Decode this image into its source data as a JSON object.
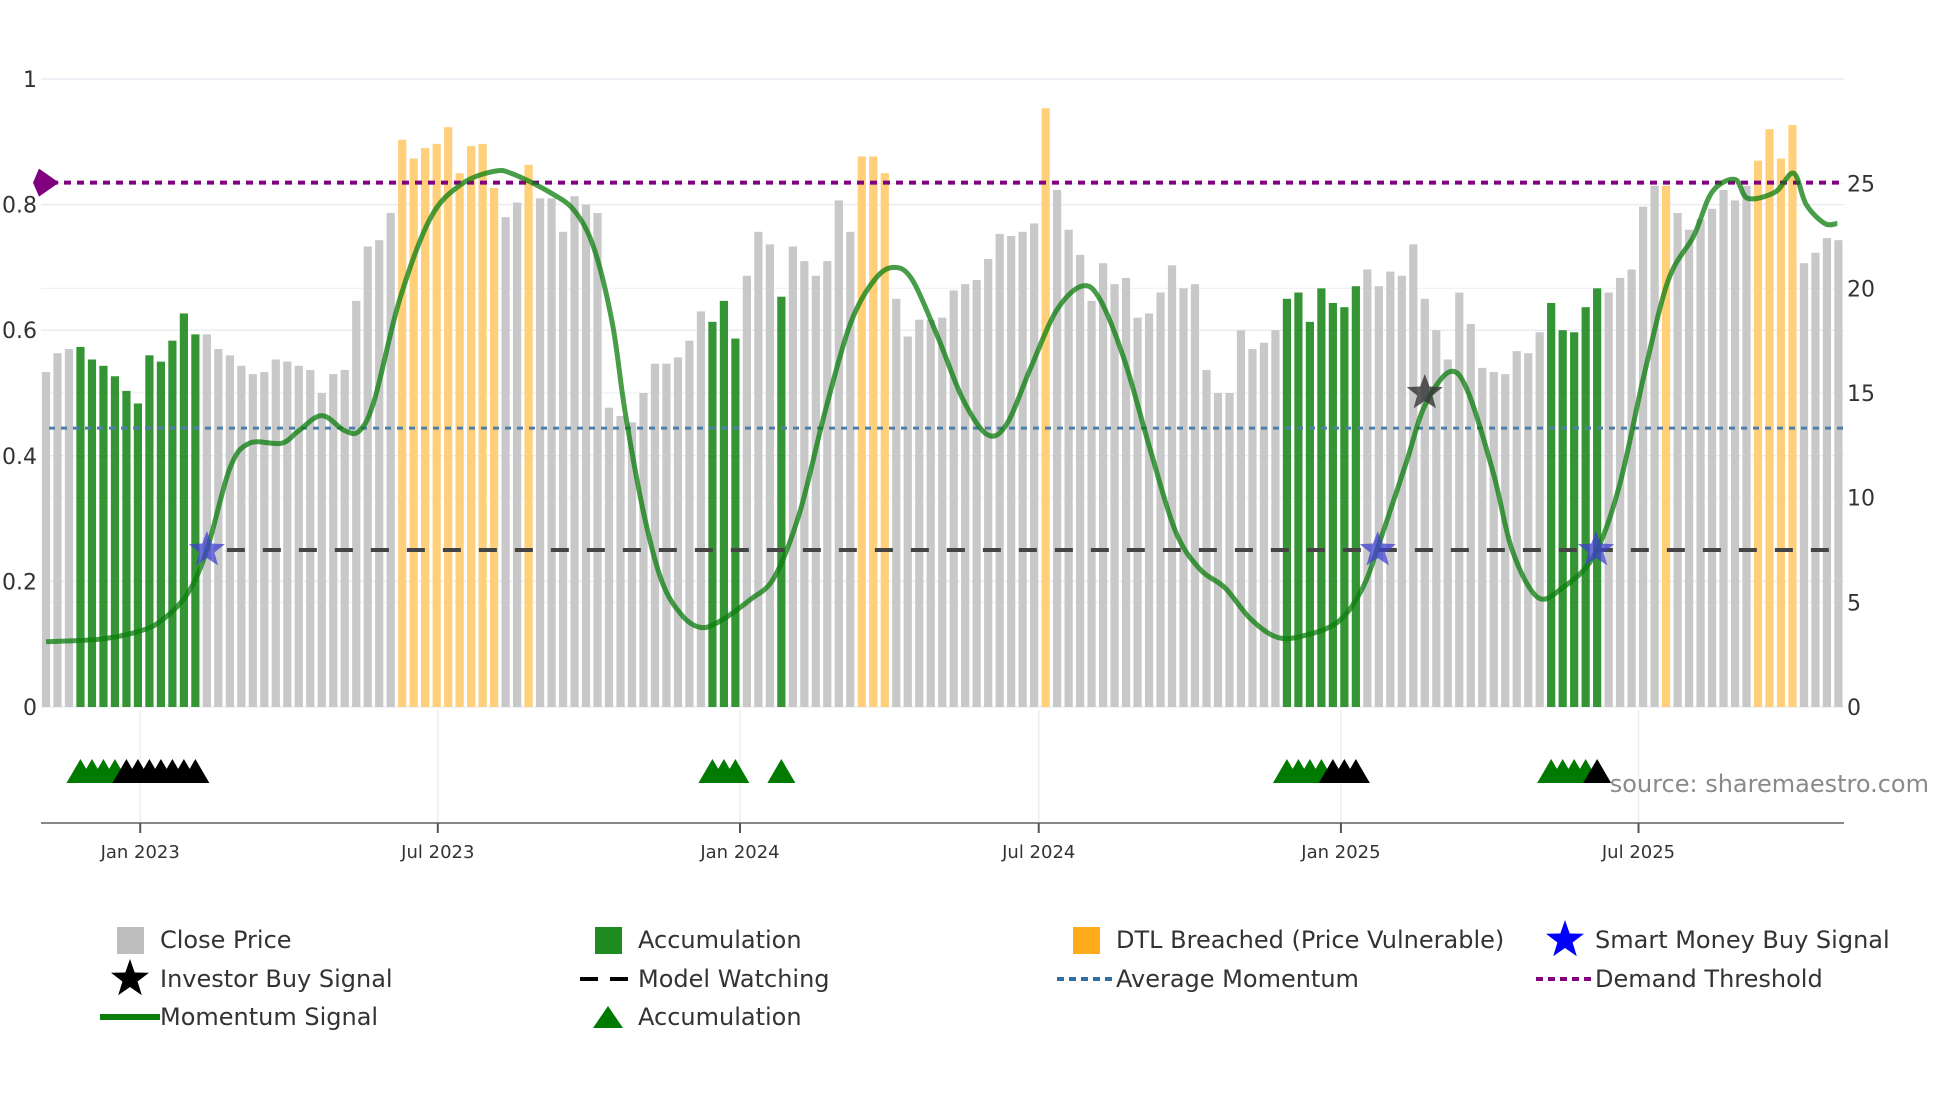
{
  "chart_data": {
    "type": "combo",
    "title": "",
    "source": "source: sharemaestro.com",
    "left_axis": {
      "ylim": [
        0,
        1
      ],
      "ticks": [
        0,
        0.2,
        0.4,
        0.6,
        0.8,
        1
      ],
      "tick_labels": [
        "0",
        "0.2",
        "0.4",
        "0.6",
        "0.8",
        "1"
      ]
    },
    "right_axis": {
      "ylim": [
        0,
        30
      ],
      "ticks": [
        0,
        5,
        10,
        15,
        20,
        25
      ],
      "tick_labels": [
        "0",
        "5",
        "10",
        "15",
        "20",
        "25"
      ]
    },
    "x_axis": {
      "unit": "weekly bar index",
      "range": [
        -0.6,
        156.6
      ],
      "ticks": [
        {
          "at": 8.2,
          "label": "Jan 2023"
        },
        {
          "at": 34.1,
          "label": "Jul 2023"
        },
        {
          "at": 60.4,
          "label": "Jan 2024"
        },
        {
          "at": 86.4,
          "label": "Jul 2024"
        },
        {
          "at": 112.7,
          "label": "Jan 2025"
        },
        {
          "at": 138.6,
          "label": "Jul 2025"
        }
      ]
    },
    "grid": true,
    "legend_position": "bottom",
    "close_price": [
      16.0,
      16.9,
      17.1,
      17.2,
      16.6,
      16.3,
      15.8,
      15.1,
      14.5,
      16.8,
      16.5,
      17.5,
      18.8,
      17.8,
      17.8,
      17.1,
      16.8,
      16.3,
      15.9,
      16.0,
      16.6,
      16.5,
      16.3,
      16.1,
      15.0,
      15.9,
      16.1,
      19.4,
      22.0,
      22.3,
      23.6,
      27.1,
      26.2,
      26.7,
      26.9,
      27.7,
      25.5,
      26.8,
      26.9,
      24.8,
      23.4,
      24.1,
      25.9,
      24.3,
      24.3,
      22.7,
      24.4,
      24.0,
      23.6,
      14.3,
      13.9,
      13.6,
      15.0,
      16.4,
      16.4,
      16.7,
      17.5,
      18.9,
      18.4,
      19.4,
      17.6,
      20.6,
      22.7,
      22.1,
      19.6,
      22.0,
      21.3,
      20.6,
      21.3,
      24.2,
      22.7,
      26.3,
      26.3,
      25.5,
      19.5,
      17.7,
      18.5,
      18.5,
      18.6,
      19.9,
      20.2,
      20.4,
      21.4,
      22.6,
      22.5,
      22.7,
      23.1,
      28.6,
      24.7,
      22.8,
      21.6,
      19.4,
      21.2,
      20.2,
      20.5,
      18.6,
      18.8,
      19.8,
      21.1,
      20.0,
      20.2,
      16.1,
      15.0,
      15.0,
      18.0,
      17.1,
      17.4,
      18.0,
      19.5,
      19.8,
      18.4,
      20.0,
      19.3,
      19.1,
      20.1,
      20.9,
      20.1,
      20.8,
      20.6,
      22.1,
      19.5,
      18.0,
      16.6,
      19.8,
      18.3,
      16.2,
      16.0,
      15.9,
      17.0,
      16.9,
      17.9,
      19.3,
      18.0,
      17.9,
      19.1,
      20.0,
      19.8,
      20.5,
      20.9,
      23.9,
      24.9,
      24.9,
      23.6,
      22.8,
      23.3,
      23.8,
      24.7,
      24.2,
      24.9,
      26.1,
      27.6,
      26.2,
      27.8,
      21.2,
      21.7,
      22.4,
      22.3
    ],
    "accumulation_bars": [
      3,
      4,
      5,
      6,
      7,
      8,
      9,
      10,
      11,
      12,
      13,
      58,
      59,
      60,
      64,
      108,
      109,
      110,
      111,
      112,
      113,
      114,
      131,
      132,
      133,
      134,
      135
    ],
    "dtl_breached_bars": [
      31,
      32,
      33,
      34,
      35,
      36,
      37,
      38,
      39,
      42,
      71,
      72,
      73,
      87,
      141,
      149,
      150,
      151,
      152
    ],
    "momentum_signal": {
      "x": [
        0,
        4.7,
        8,
        10,
        12.3,
        14,
        16,
        17.7,
        20.5,
        22,
        24,
        26,
        27.3,
        28.6,
        30.8,
        33.5,
        36.2,
        39,
        40.6,
        43.9,
        46,
        47.7,
        49.3,
        50.4,
        52,
        53.6,
        55.3,
        56.9,
        58.5,
        61.3,
        63.4,
        65.6,
        67.8,
        70,
        72.1,
        73.8,
        75.4,
        77.6,
        79.8,
        81.9,
        83.6,
        85.7,
        87.9,
        90.1,
        91.7,
        93.9,
        96.1,
        98.3,
        100.4,
        102.6,
        104.8,
        107,
        109.1,
        112.4,
        114.6,
        116.2,
        118.4,
        120,
        122.2,
        123.8,
        126,
        127.6,
        129.8,
        132,
        134.7,
        136.9,
        139.1,
        141.2,
        143.4,
        145,
        147,
        148.1,
        150.5,
        152.1,
        153.2,
        154.8,
        155.9
      ],
      "y": [
        0.104,
        0.108,
        0.12,
        0.137,
        0.18,
        0.25,
        0.38,
        0.42,
        0.42,
        0.44,
        0.464,
        0.44,
        0.44,
        0.49,
        0.65,
        0.78,
        0.833,
        0.853,
        0.849,
        0.819,
        0.79,
        0.73,
        0.61,
        0.47,
        0.31,
        0.2,
        0.147,
        0.127,
        0.135,
        0.171,
        0.207,
        0.31,
        0.47,
        0.61,
        0.68,
        0.7,
        0.68,
        0.59,
        0.49,
        0.434,
        0.45,
        0.54,
        0.63,
        0.67,
        0.65,
        0.55,
        0.41,
        0.28,
        0.22,
        0.19,
        0.141,
        0.112,
        0.112,
        0.135,
        0.19,
        0.27,
        0.39,
        0.48,
        0.534,
        0.5,
        0.37,
        0.25,
        0.175,
        0.19,
        0.24,
        0.35,
        0.53,
        0.68,
        0.75,
        0.82,
        0.84,
        0.81,
        0.82,
        0.85,
        0.8,
        0.77,
        0.77
      ]
    },
    "demand_threshold": 0.835,
    "average_momentum": 0.444,
    "model_watching": {
      "value": 0.25,
      "from_bar": 14
    },
    "smart_money_buy_signals": [
      {
        "x": 14.0,
        "y": 0.25
      },
      {
        "x": 115.9,
        "y": 0.25
      },
      {
        "x": 134.9,
        "y": 0.25
      }
    ],
    "investor_buy_signals": [
      {
        "x": 120.0,
        "y": 0.5
      }
    ],
    "accumulation_markers": [
      {
        "bar": 3,
        "color": "green"
      },
      {
        "bar": 4,
        "color": "green"
      },
      {
        "bar": 5,
        "color": "green"
      },
      {
        "bar": 6,
        "color": "green"
      },
      {
        "bar": 7,
        "color": "black"
      },
      {
        "bar": 8,
        "color": "black"
      },
      {
        "bar": 9,
        "color": "black"
      },
      {
        "bar": 10,
        "color": "black"
      },
      {
        "bar": 11,
        "color": "black"
      },
      {
        "bar": 12,
        "color": "black"
      },
      {
        "bar": 13,
        "color": "black"
      },
      {
        "bar": 58,
        "color": "green"
      },
      {
        "bar": 59,
        "color": "green"
      },
      {
        "bar": 60,
        "color": "green"
      },
      {
        "bar": 64,
        "color": "green"
      },
      {
        "bar": 108,
        "color": "green"
      },
      {
        "bar": 109,
        "color": "green"
      },
      {
        "bar": 110,
        "color": "green"
      },
      {
        "bar": 111,
        "color": "green"
      },
      {
        "bar": 112,
        "color": "black"
      },
      {
        "bar": 113,
        "color": "black"
      },
      {
        "bar": 114,
        "color": "black"
      },
      {
        "bar": 131,
        "color": "green"
      },
      {
        "bar": 132,
        "color": "green"
      },
      {
        "bar": 133,
        "color": "green"
      },
      {
        "bar": 134,
        "color": "green"
      },
      {
        "bar": 135,
        "color": "black"
      }
    ],
    "colors": {
      "close_price": "#c8c8c8",
      "accumulation": "#1f8a1f",
      "dtl_breached": "#ffcf7a",
      "momentum": "#0b7d0b",
      "smart_money": "#4040d0",
      "investor": "#333333",
      "model_watching": "#444444",
      "average_momentum": "#4f7fa8",
      "demand_threshold": "#800080",
      "triangle_green": "#007a00",
      "triangle_black": "#000000"
    },
    "legend": [
      {
        "label": "Close Price"
      },
      {
        "label": "Accumulation"
      },
      {
        "label": "DTL Breached (Price Vulnerable)"
      },
      {
        "label": "Smart Money Buy Signal"
      },
      {
        "label": "Investor Buy Signal"
      },
      {
        "label": "Model Watching"
      },
      {
        "label": "Average Momentum"
      },
      {
        "label": "Demand Threshold"
      },
      {
        "label": "Momentum Signal"
      },
      {
        "label": "Accumulation"
      }
    ]
  }
}
